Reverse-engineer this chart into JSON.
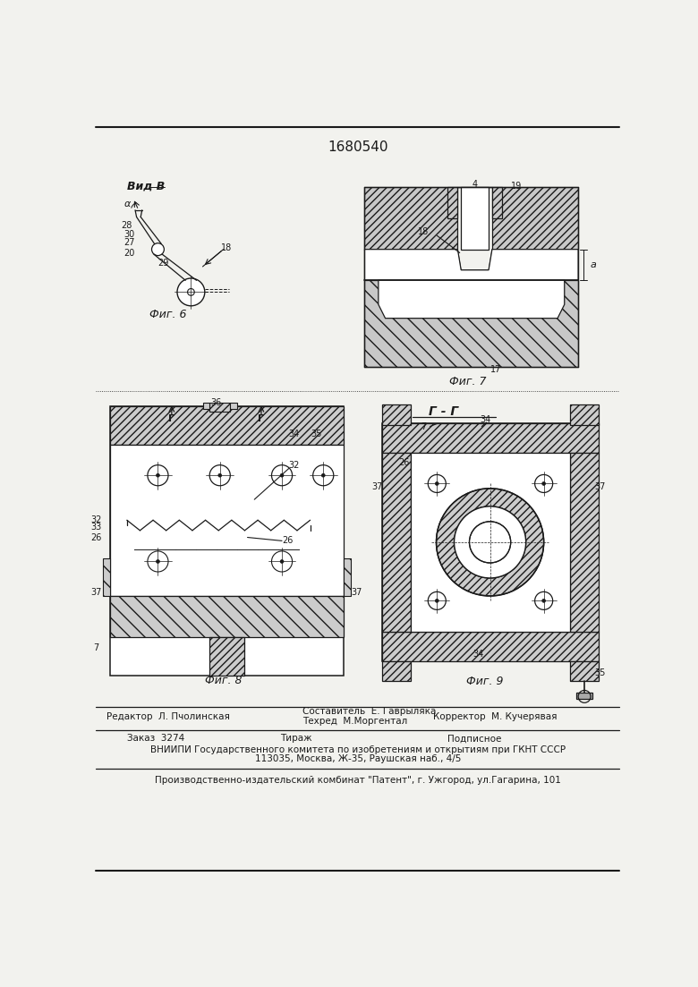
{
  "title_number": "1680540",
  "background_color": "#f2f2ee",
  "line_color": "#1a1a1a",
  "fig6_label": "Фиг. 6",
  "fig7_label": "Фиг. 7",
  "fig8_label": "Фиг. 8",
  "fig9_label": "Фиг. 9",
  "view_label": "Вид В",
  "section_label": "Г - Г",
  "footer_line1_left": "Редактор  Л. Пчолинская",
  "footer_line1_mid1": "Составитель  Е. Гаврыляка",
  "footer_line1_mid2": "Техред  М.Моргентал",
  "footer_line1_right": "Корректор  М. Кучерявая",
  "footer_line3": "ВНИИПИ Государственного комитета по изобретениям и открытиям при ГКНТ СССР",
  "footer_line4": "113035, Москва, Ж-35, Раушская наб., 4/5",
  "footer_line5": "Производственно-издательский комбинат \"Патент\", г. Ужгород, ул.Гагарина, 101"
}
